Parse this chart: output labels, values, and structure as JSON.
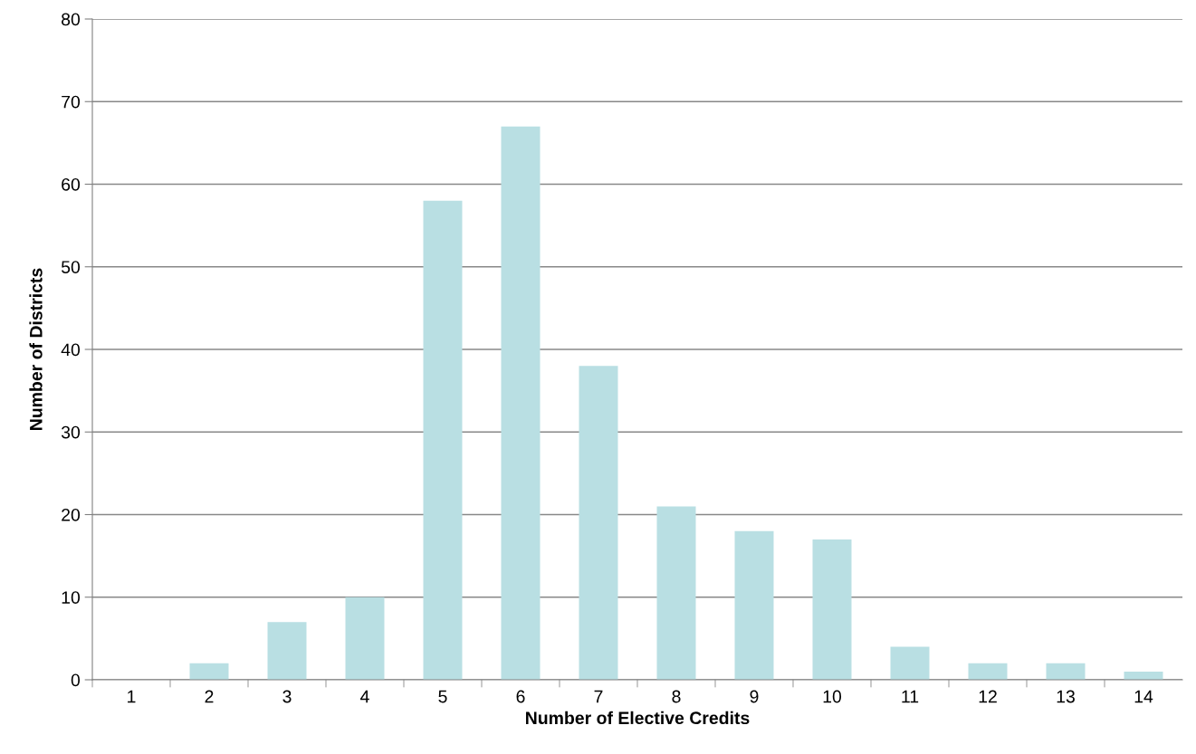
{
  "chart_data": {
    "type": "bar",
    "xlabel": "Number of Elective Credits",
    "ylabel": "Number of Districts",
    "categories": [
      "1",
      "2",
      "3",
      "4",
      "5",
      "6",
      "7",
      "8",
      "9",
      "10",
      "11",
      "12",
      "13",
      "14"
    ],
    "values": [
      0,
      2,
      7,
      10,
      58,
      67,
      38,
      21,
      18,
      17,
      4,
      2,
      2,
      1
    ],
    "color": "#b9dfe3",
    "ylim": [
      0,
      80
    ],
    "yticks": [
      0,
      10,
      20,
      30,
      40,
      50,
      60,
      70,
      80
    ],
    "grid": "y",
    "legend": false
  }
}
